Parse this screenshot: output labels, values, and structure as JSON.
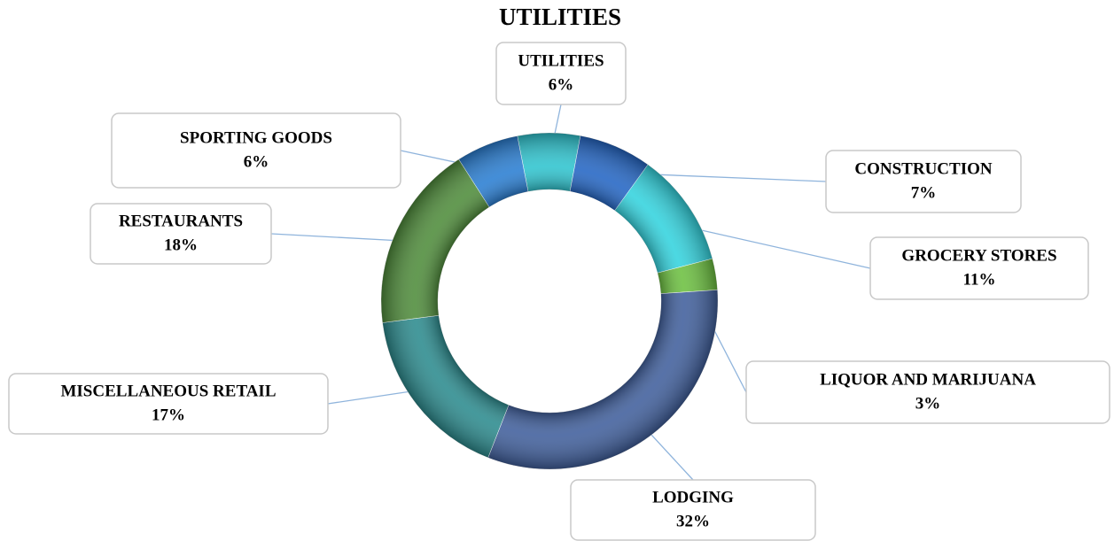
{
  "chart_data": {
    "type": "donut",
    "title": "UTILITIES",
    "categories": [
      "UTILITIES",
      "CONSTRUCTION",
      "GROCERY STORES",
      "LIQUOR AND MARIJUANA",
      "LODGING",
      "MISCELLANEOUS RETAIL",
      "RESTAURANTS",
      "SPORTING GOODS"
    ],
    "values": [
      6,
      7,
      11,
      3,
      32,
      17,
      18,
      6
    ],
    "value_labels": [
      "6%",
      "7%",
      "11%",
      "3%",
      "32%",
      "17%",
      "18%",
      "6%"
    ],
    "colors": [
      "#2fc4cf",
      "#2466c4",
      "#33d3de",
      "#6cc040",
      "#405f9c",
      "#2c8b8e",
      "#4f8c3b",
      "#2a7ed2"
    ]
  }
}
